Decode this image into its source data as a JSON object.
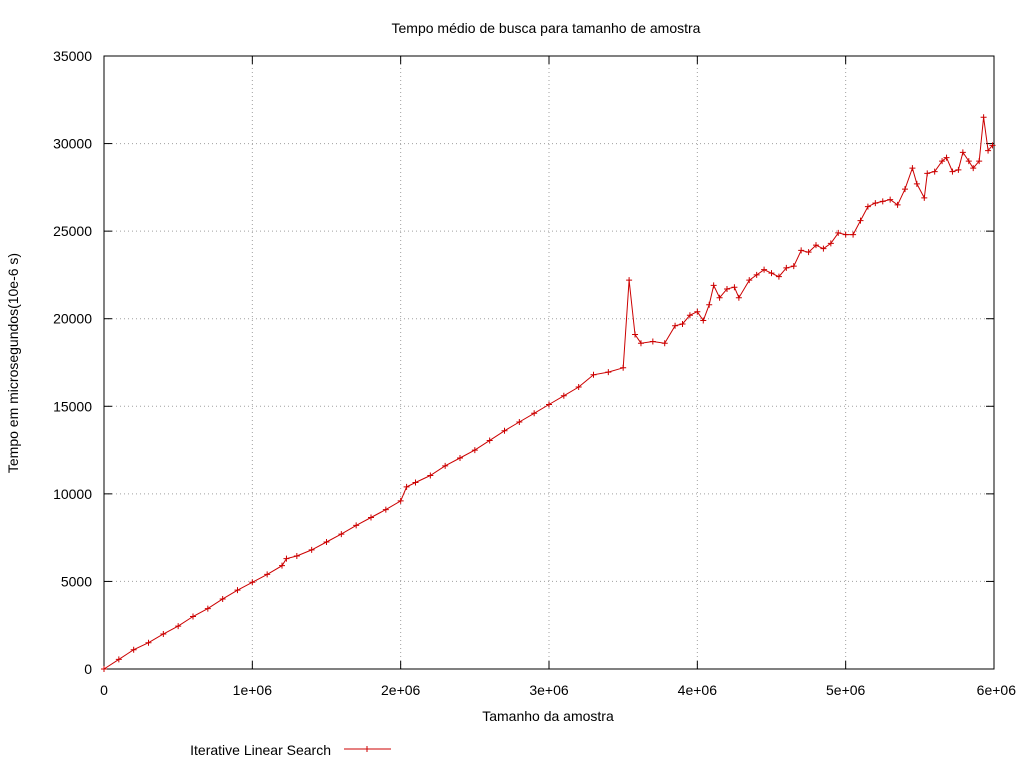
{
  "chart_data": {
    "type": "line",
    "title": "Tempo médio de busca para tamanho de amostra",
    "xlabel": "Tamanho da amostra",
    "ylabel": "Tempo em microsegundos(10e-6 s)",
    "xlim": [
      0,
      6000000
    ],
    "ylim": [
      0,
      35000
    ],
    "x_ticks": [
      0,
      1000000,
      2000000,
      3000000,
      4000000,
      5000000,
      6000000
    ],
    "x_tick_labels": [
      "0",
      "1e+06",
      "2e+06",
      "3e+06",
      "4e+06",
      "5e+06",
      "6e+06"
    ],
    "y_ticks": [
      0,
      5000,
      10000,
      15000,
      20000,
      25000,
      30000,
      35000
    ],
    "y_tick_labels": [
      "0",
      "5000",
      "10000",
      "15000",
      "20000",
      "25000",
      "30000",
      "35000"
    ],
    "grid": true,
    "legend_position": "bottom-left",
    "series": [
      {
        "name": "Iterative Linear Search",
        "color": "#cc0000",
        "marker": "plus",
        "points": [
          [
            0,
            0
          ],
          [
            100000,
            550
          ],
          [
            200000,
            1100
          ],
          [
            300000,
            1500
          ],
          [
            400000,
            2000
          ],
          [
            500000,
            2450
          ],
          [
            600000,
            3000
          ],
          [
            700000,
            3450
          ],
          [
            800000,
            4000
          ],
          [
            900000,
            4500
          ],
          [
            1000000,
            4950
          ],
          [
            1100000,
            5400
          ],
          [
            1200000,
            5900
          ],
          [
            1230000,
            6300
          ],
          [
            1300000,
            6450
          ],
          [
            1400000,
            6800
          ],
          [
            1500000,
            7250
          ],
          [
            1600000,
            7700
          ],
          [
            1700000,
            8200
          ],
          [
            1800000,
            8650
          ],
          [
            1900000,
            9100
          ],
          [
            2000000,
            9600
          ],
          [
            2040000,
            10400
          ],
          [
            2100000,
            10650
          ],
          [
            2200000,
            11050
          ],
          [
            2300000,
            11600
          ],
          [
            2400000,
            12050
          ],
          [
            2500000,
            12500
          ],
          [
            2600000,
            13050
          ],
          [
            2700000,
            13600
          ],
          [
            2800000,
            14100
          ],
          [
            2900000,
            14600
          ],
          [
            3000000,
            15100
          ],
          [
            3100000,
            15600
          ],
          [
            3200000,
            16100
          ],
          [
            3300000,
            16800
          ],
          [
            3400000,
            16950
          ],
          [
            3500000,
            17200
          ],
          [
            3540000,
            22200
          ],
          [
            3580000,
            19100
          ],
          [
            3620000,
            18600
          ],
          [
            3700000,
            18700
          ],
          [
            3780000,
            18600
          ],
          [
            3850000,
            19600
          ],
          [
            3900000,
            19700
          ],
          [
            3950000,
            20200
          ],
          [
            4000000,
            20400
          ],
          [
            4040000,
            19900
          ],
          [
            4080000,
            20800
          ],
          [
            4110000,
            21900
          ],
          [
            4150000,
            21200
          ],
          [
            4200000,
            21700
          ],
          [
            4250000,
            21800
          ],
          [
            4280000,
            21200
          ],
          [
            4350000,
            22200
          ],
          [
            4400000,
            22500
          ],
          [
            4450000,
            22800
          ],
          [
            4500000,
            22600
          ],
          [
            4550000,
            22400
          ],
          [
            4600000,
            22900
          ],
          [
            4650000,
            23000
          ],
          [
            4700000,
            23900
          ],
          [
            4750000,
            23800
          ],
          [
            4800000,
            24200
          ],
          [
            4850000,
            24000
          ],
          [
            4900000,
            24300
          ],
          [
            4950000,
            24900
          ],
          [
            5000000,
            24800
          ],
          [
            5050000,
            24800
          ],
          [
            5100000,
            25600
          ],
          [
            5150000,
            26400
          ],
          [
            5200000,
            26600
          ],
          [
            5250000,
            26700
          ],
          [
            5300000,
            26800
          ],
          [
            5350000,
            26500
          ],
          [
            5400000,
            27400
          ],
          [
            5450000,
            28600
          ],
          [
            5480000,
            27700
          ],
          [
            5530000,
            26900
          ],
          [
            5550000,
            28300
          ],
          [
            5600000,
            28400
          ],
          [
            5650000,
            29000
          ],
          [
            5680000,
            29200
          ],
          [
            5720000,
            28400
          ],
          [
            5760000,
            28500
          ],
          [
            5790000,
            29500
          ],
          [
            5830000,
            29000
          ],
          [
            5860000,
            28600
          ],
          [
            5900000,
            29000
          ],
          [
            5930000,
            31500
          ],
          [
            5960000,
            29600
          ],
          [
            5990000,
            29900
          ]
        ]
      }
    ]
  }
}
